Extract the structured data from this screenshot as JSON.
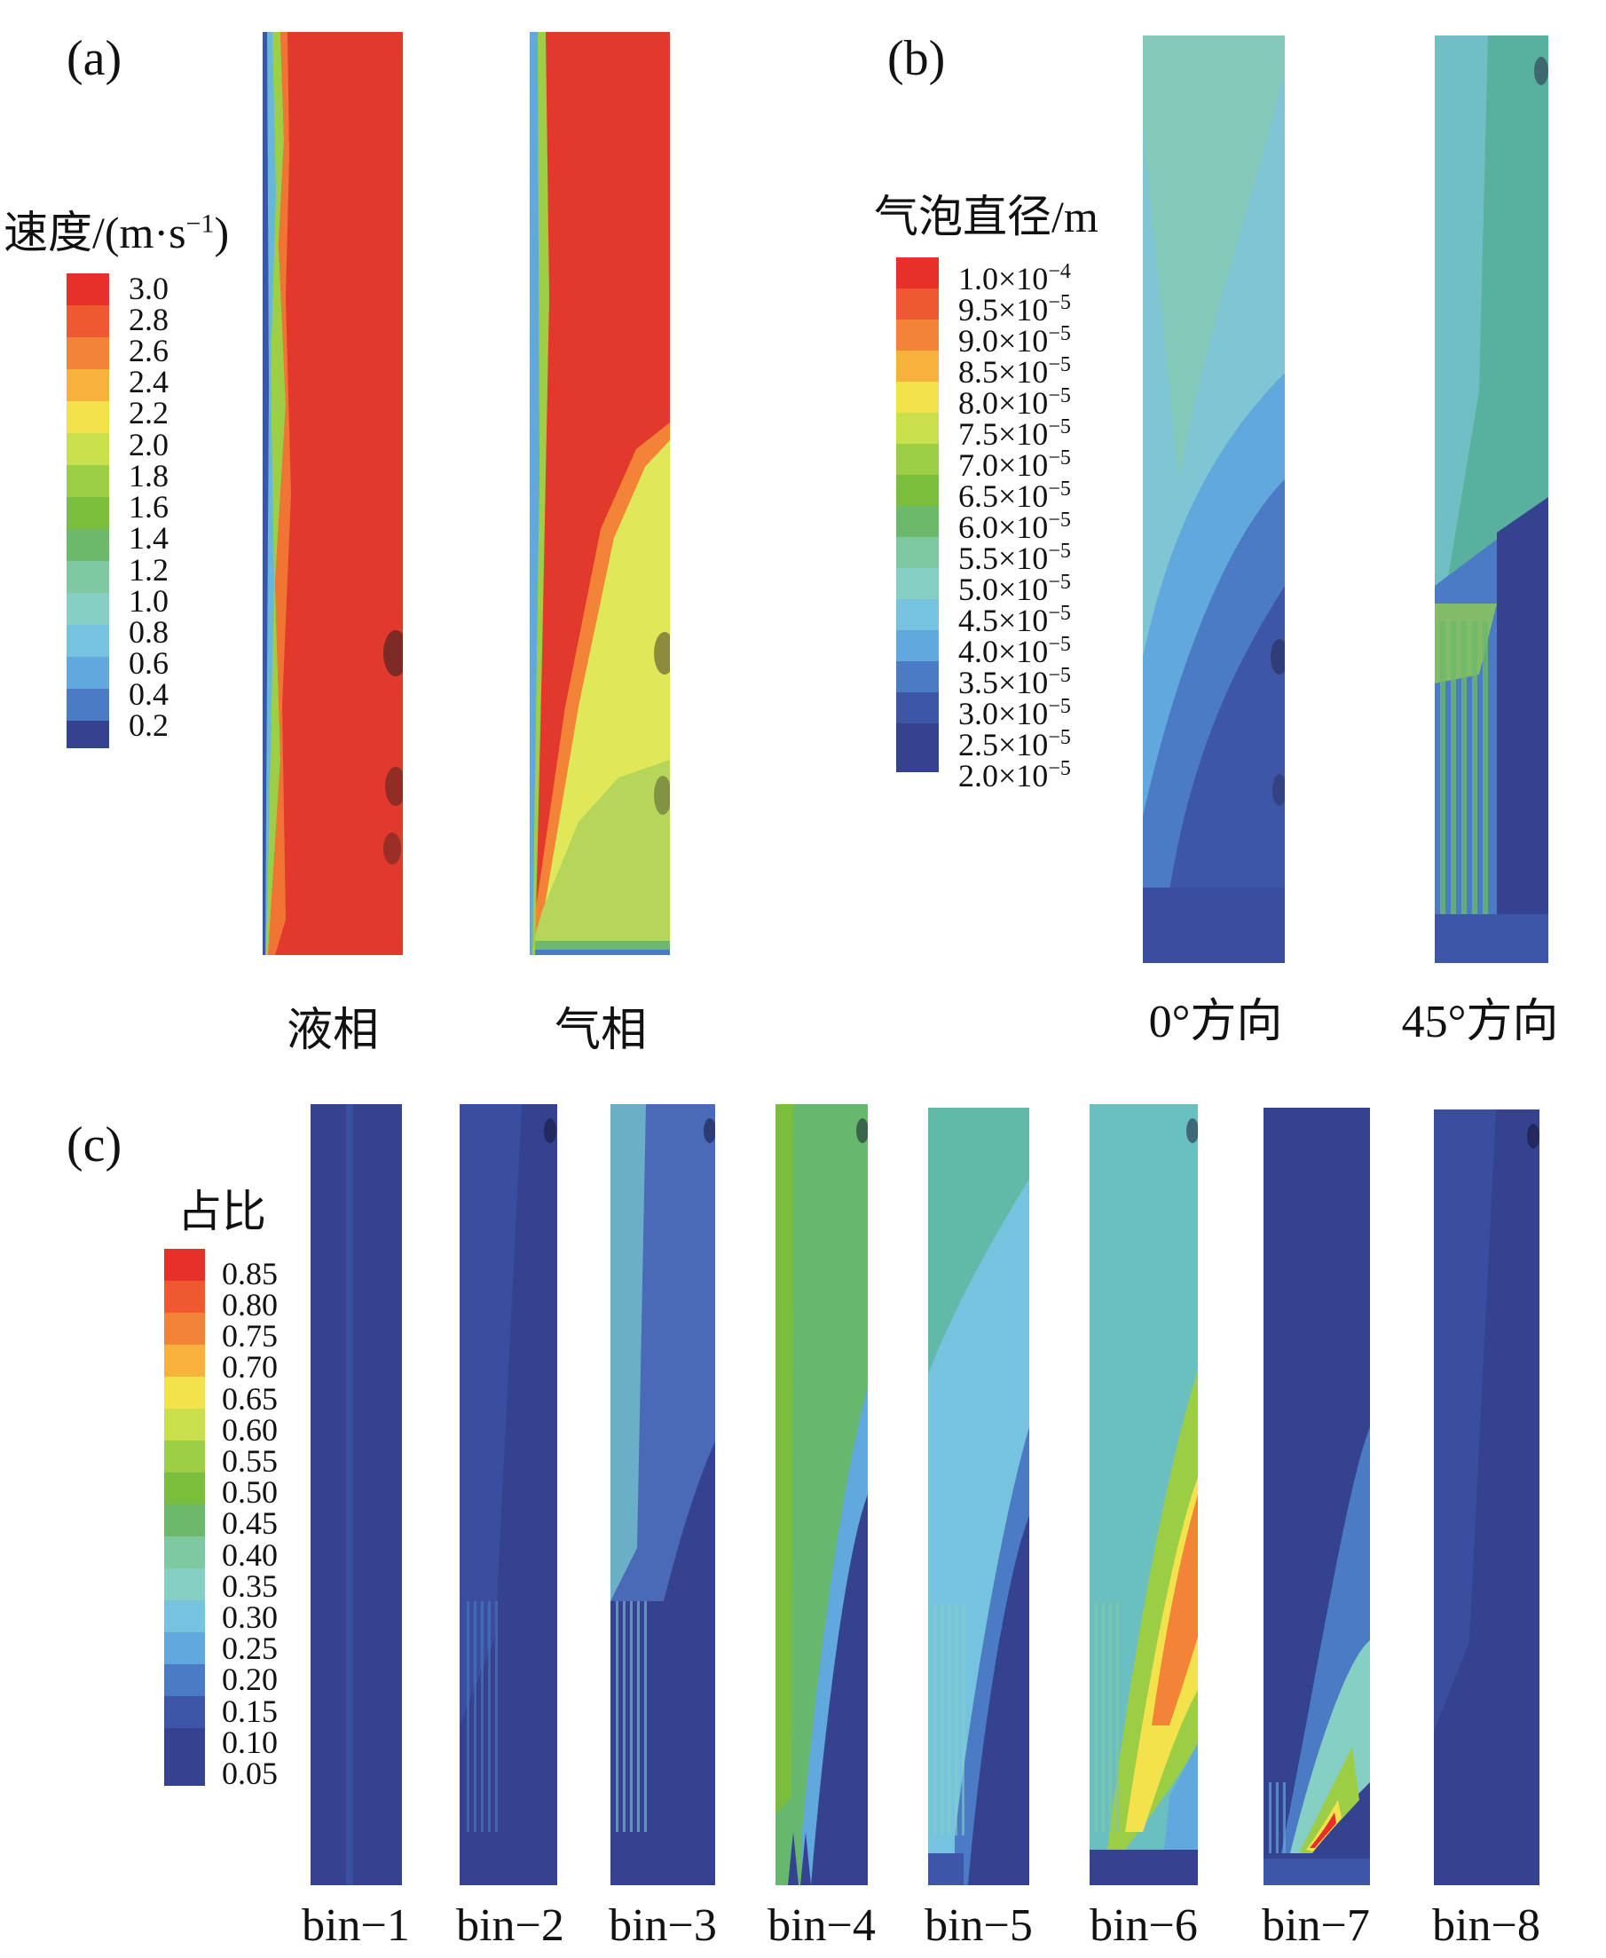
{
  "panels": {
    "a": {
      "label": "(a)",
      "legend_title_prefix": "速度/(m·s",
      "legend_title_sup": "−1",
      "legend_title_suffix": ")",
      "legend_ticks": [
        "3.0",
        "2.8",
        "2.6",
        "2.4",
        "2.2",
        "2.0",
        "1.8",
        "1.6",
        "1.4",
        "1.2",
        "1.0",
        "0.8",
        "0.6",
        "0.4",
        "0.2"
      ],
      "captions": [
        "液相",
        "气相"
      ]
    },
    "b": {
      "label": "(b)",
      "legend_title": "气泡直径/m",
      "legend_ticks": [
        {
          "mant": "1.0×10",
          "exp": "−4"
        },
        {
          "mant": "9.5×10",
          "exp": "−5"
        },
        {
          "mant": "9.0×10",
          "exp": "−5"
        },
        {
          "mant": "8.5×10",
          "exp": "−5"
        },
        {
          "mant": "8.0×10",
          "exp": "−5"
        },
        {
          "mant": "7.5×10",
          "exp": "−5"
        },
        {
          "mant": "7.0×10",
          "exp": "−5"
        },
        {
          "mant": "6.5×10",
          "exp": "−5"
        },
        {
          "mant": "6.0×10",
          "exp": "−5"
        },
        {
          "mant": "5.5×10",
          "exp": "−5"
        },
        {
          "mant": "5.0×10",
          "exp": "−5"
        },
        {
          "mant": "4.5×10",
          "exp": "−5"
        },
        {
          "mant": "4.0×10",
          "exp": "−5"
        },
        {
          "mant": "3.5×10",
          "exp": "−5"
        },
        {
          "mant": "3.0×10",
          "exp": "−5"
        },
        {
          "mant": "2.5×10",
          "exp": "−5"
        },
        {
          "mant": "2.0×10",
          "exp": "−5"
        }
      ],
      "captions": [
        "0°方向",
        "45°方向"
      ]
    },
    "c": {
      "label": "(c)",
      "legend_title": "占比",
      "legend_ticks": [
        "0.85",
        "0.80",
        "0.75",
        "0.70",
        "0.65",
        "0.60",
        "0.55",
        "0.50",
        "0.45",
        "0.40",
        "0.35",
        "0.30",
        "0.25",
        "0.20",
        "0.15",
        "0.10",
        "0.05"
      ],
      "captions": [
        "bin−1",
        "bin−2",
        "bin−3",
        "bin−4",
        "bin−5",
        "bin−6",
        "bin−7",
        "bin−8"
      ]
    }
  },
  "colors": {
    "palette": [
      "#e8302b",
      "#ef5830",
      "#f38437",
      "#f8b13c",
      "#f2e24c",
      "#c9df4c",
      "#9cce45",
      "#7bbd3d",
      "#6cb96c",
      "#7ec9a1",
      "#86cfc4",
      "#75c3de",
      "#61a8dd",
      "#4a7bc4",
      "#3e56a7",
      "#34428f"
    ],
    "red_field": "#e3392c",
    "yellow_field": "#e0e85a",
    "green_field": "#b6d65a",
    "deep_blue": "#2e3a8c",
    "mid_blue": "#4a6ab8",
    "light_cyan": "#7fc8c8",
    "aqua": "#6cbfc0",
    "green_bin": "#66b86c",
    "sea_green": "#63b9a8"
  }
}
